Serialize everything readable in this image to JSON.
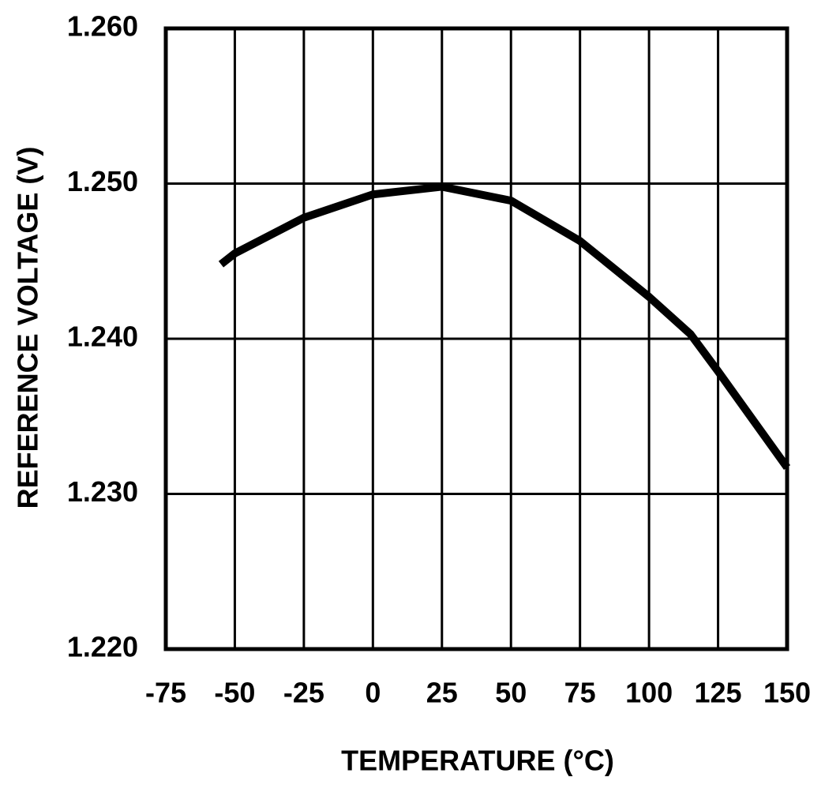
{
  "chart_data": {
    "type": "line",
    "x_label": "TEMPERATURE (°C)",
    "y_label": "REFERENCE VOLTAGE (V)",
    "x": [
      -55,
      -50,
      -25,
      0,
      25,
      50,
      75,
      100,
      115,
      125,
      150
    ],
    "series": [
      {
        "color": "#000000",
        "values": [
          1.2448,
          1.2455,
          1.2478,
          1.2493,
          1.2498,
          1.2489,
          1.2463,
          1.2427,
          1.2403,
          1.2379,
          1.2317
        ]
      }
    ],
    "xlim": [
      -75,
      150
    ],
    "xticks": [
      -75,
      -50,
      -25,
      0,
      25,
      50,
      75,
      100,
      125,
      150
    ],
    "ylim": [
      1.22,
      1.26
    ],
    "yticks": [
      {
        "value": 1.22,
        "label": "1.220"
      },
      {
        "value": 1.23,
        "label": "1.230"
      },
      {
        "value": 1.24,
        "label": "1.240"
      },
      {
        "value": 1.25,
        "label": "1.250"
      },
      {
        "value": 1.26,
        "label": "1.260"
      }
    ],
    "grid": true
  }
}
